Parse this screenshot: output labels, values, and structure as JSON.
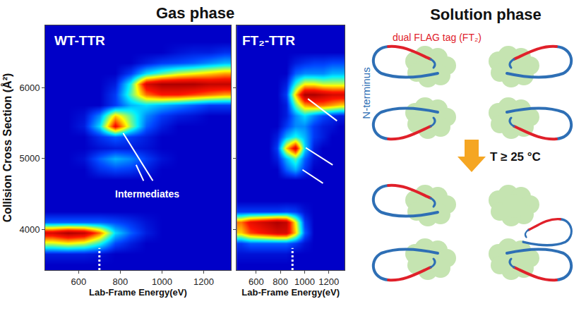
{
  "headers": {
    "gas": "Gas phase",
    "solution": "Solution phase"
  },
  "chart_data": [
    {
      "type": "heatmap",
      "title": "WT-TTR",
      "x_label": "Lab-Frame Energy(eV)",
      "y_label": "Collision Cross Section (Å²)",
      "x": [
        475,
        550,
        625,
        700,
        775,
        850,
        925,
        1000,
        1075,
        1150,
        1225,
        1300
      ],
      "y": [
        3500,
        3650,
        3800,
        3950,
        4100,
        4250,
        4400,
        4550,
        4700,
        4850,
        5000,
        5150,
        5300,
        5450,
        5600,
        5750,
        5900,
        6050,
        6200,
        6350,
        6500,
        6650,
        6800
      ],
      "cells": [
        [
          0,
          0,
          0,
          0,
          0,
          0,
          0,
          0,
          0,
          0,
          0,
          0
        ],
        [
          5,
          5,
          5,
          3,
          0,
          0,
          0,
          0,
          0,
          0,
          0,
          0
        ],
        [
          50,
          55,
          50,
          35,
          12,
          5,
          0,
          0,
          0,
          0,
          0,
          0
        ],
        [
          90,
          100,
          95,
          70,
          30,
          15,
          5,
          0,
          0,
          0,
          0,
          0
        ],
        [
          15,
          15,
          15,
          15,
          12,
          8,
          3,
          0,
          0,
          0,
          0,
          0
        ],
        [
          0,
          0,
          0,
          0,
          0,
          0,
          0,
          0,
          0,
          0,
          0,
          0
        ],
        [
          0,
          0,
          0,
          0,
          0,
          0,
          0,
          0,
          0,
          0,
          0,
          0
        ],
        [
          0,
          0,
          0,
          0,
          0,
          0,
          0,
          0,
          0,
          0,
          0,
          0
        ],
        [
          0,
          0,
          0,
          0,
          0,
          0,
          0,
          0,
          0,
          0,
          0,
          0
        ],
        [
          0,
          0,
          0,
          8,
          12,
          10,
          5,
          0,
          0,
          0,
          0,
          0
        ],
        [
          0,
          0,
          3,
          15,
          25,
          20,
          10,
          3,
          0,
          0,
          0,
          0
        ],
        [
          0,
          0,
          0,
          3,
          5,
          5,
          3,
          0,
          0,
          0,
          0,
          0
        ],
        [
          0,
          0,
          0,
          8,
          15,
          10,
          5,
          0,
          0,
          0,
          0,
          0
        ],
        [
          0,
          0,
          5,
          30,
          85,
          45,
          15,
          5,
          0,
          0,
          0,
          0
        ],
        [
          0,
          0,
          3,
          20,
          60,
          40,
          20,
          10,
          5,
          3,
          0,
          0
        ],
        [
          0,
          0,
          0,
          0,
          10,
          25,
          30,
          25,
          20,
          15,
          10,
          10
        ],
        [
          0,
          0,
          0,
          0,
          10,
          40,
          70,
          80,
          80,
          75,
          70,
          65
        ],
        [
          0,
          0,
          0,
          0,
          5,
          35,
          90,
          100,
          100,
          100,
          95,
          95
        ],
        [
          0,
          0,
          0,
          0,
          0,
          10,
          30,
          40,
          50,
          55,
          60,
          65
        ],
        [
          0,
          0,
          0,
          0,
          0,
          0,
          5,
          10,
          12,
          15,
          20,
          25
        ],
        [
          0,
          0,
          0,
          0,
          0,
          0,
          0,
          0,
          3,
          5,
          5,
          8
        ],
        [
          0,
          0,
          0,
          0,
          0,
          0,
          0,
          0,
          0,
          0,
          0,
          0
        ],
        [
          0,
          0,
          0,
          0,
          0,
          0,
          0,
          0,
          0,
          0,
          0,
          0
        ]
      ],
      "zlim": [
        0,
        100
      ],
      "xlim": [
        440,
        1330
      ],
      "xticks": [
        600,
        800,
        1000,
        1200
      ],
      "ylim": [
        3425,
        6875
      ],
      "yticks": [
        4000,
        5000,
        6000
      ],
      "annotations": [
        "Intermediates"
      ],
      "onset_energy": 700
    },
    {
      "type": "heatmap",
      "title": "FT₂-TTR",
      "x_label": "Lab-Frame Energy(eV)",
      "x": [
        475,
        550,
        625,
        700,
        775,
        850,
        925,
        1000,
        1075,
        1150,
        1225,
        1300
      ],
      "y": [
        3500,
        3650,
        3800,
        3950,
        4100,
        4250,
        4400,
        4550,
        4700,
        4850,
        5000,
        5150,
        5300,
        5450,
        5600,
        5750,
        5900,
        6050,
        6200,
        6350,
        6500,
        6650,
        6800
      ],
      "cells": [
        [
          0,
          0,
          0,
          0,
          0,
          0,
          0,
          0,
          0,
          0,
          0,
          0
        ],
        [
          3,
          3,
          3,
          3,
          3,
          3,
          0,
          0,
          0,
          0,
          0,
          0
        ],
        [
          10,
          15,
          15,
          15,
          15,
          15,
          10,
          3,
          0,
          0,
          0,
          0
        ],
        [
          60,
          75,
          80,
          85,
          90,
          90,
          60,
          15,
          0,
          0,
          0,
          0
        ],
        [
          70,
          85,
          90,
          95,
          100,
          95,
          55,
          10,
          0,
          0,
          0,
          0
        ],
        [
          10,
          10,
          10,
          10,
          10,
          12,
          10,
          3,
          0,
          0,
          0,
          0
        ],
        [
          0,
          0,
          0,
          0,
          0,
          0,
          0,
          0,
          0,
          0,
          0,
          0
        ],
        [
          0,
          0,
          0,
          0,
          0,
          0,
          0,
          0,
          0,
          0,
          0,
          0
        ],
        [
          0,
          0,
          0,
          0,
          0,
          0,
          0,
          0,
          0,
          0,
          0,
          0
        ],
        [
          0,
          0,
          0,
          0,
          0,
          15,
          25,
          10,
          0,
          0,
          0,
          0
        ],
        [
          0,
          0,
          0,
          0,
          5,
          25,
          40,
          15,
          3,
          0,
          0,
          0
        ],
        [
          0,
          0,
          0,
          0,
          10,
          60,
          90,
          30,
          5,
          0,
          0,
          0
        ],
        [
          0,
          0,
          0,
          0,
          5,
          25,
          35,
          25,
          10,
          5,
          0,
          0
        ],
        [
          0,
          0,
          0,
          0,
          0,
          10,
          20,
          20,
          10,
          5,
          3,
          0
        ],
        [
          0,
          0,
          0,
          0,
          0,
          5,
          20,
          30,
          20,
          12,
          8,
          5
        ],
        [
          0,
          0,
          0,
          0,
          0,
          5,
          40,
          65,
          70,
          70,
          65,
          60
        ],
        [
          0,
          0,
          0,
          0,
          0,
          10,
          60,
          100,
          100,
          95,
          90,
          90
        ],
        [
          0,
          0,
          0,
          0,
          0,
          5,
          35,
          55,
          55,
          50,
          50,
          50
        ],
        [
          0,
          0,
          0,
          0,
          0,
          0,
          15,
          20,
          20,
          20,
          25,
          25
        ],
        [
          0,
          0,
          0,
          0,
          0,
          0,
          5,
          8,
          10,
          10,
          12,
          12
        ],
        [
          0,
          0,
          0,
          0,
          0,
          0,
          0,
          0,
          0,
          0,
          0,
          0
        ],
        [
          0,
          0,
          0,
          0,
          0,
          0,
          0,
          0,
          0,
          0,
          0,
          0
        ],
        [
          0,
          0,
          0,
          0,
          0,
          0,
          0,
          0,
          0,
          0,
          0,
          0
        ]
      ],
      "zlim": [
        0,
        100
      ],
      "xlim": [
        440,
        1330
      ],
      "xticks": [
        600,
        800,
        1000,
        1200
      ],
      "ylim": [
        3425,
        6875
      ],
      "yticks": [
        4000,
        5000,
        6000
      ],
      "tick_labels": "x",
      "onset_energy": 900
    }
  ],
  "diagram": {
    "tag_label": "dual FLAG tag (FT₂)",
    "terminus_label": "N-terminus",
    "condition": "T ≥ 25 °C"
  }
}
